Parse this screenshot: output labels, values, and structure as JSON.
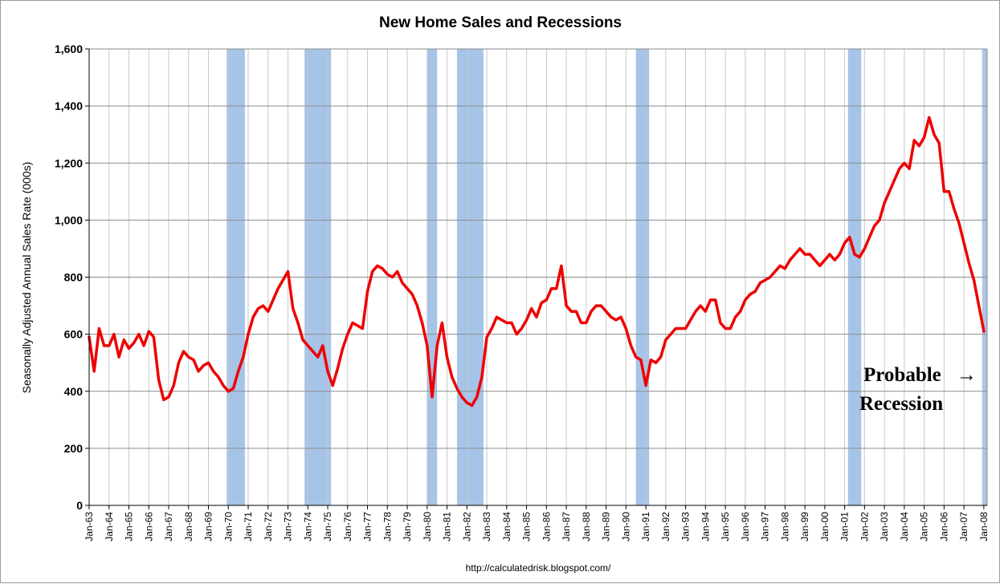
{
  "chart_data": {
    "type": "line",
    "title": "New Home Sales and Recessions",
    "ylabel": "Seasonally Adjusted Annual Sales Rate (000s)",
    "xlabel": "",
    "source": "http://calculatedrisk.blogspot.com/",
    "ylim": [
      0,
      1600
    ],
    "yticks": [
      0,
      200,
      400,
      600,
      800,
      1000,
      1200,
      1400,
      1600
    ],
    "ytick_labels": [
      "0",
      "200",
      "400",
      "600",
      "800",
      "1,000",
      "1,200",
      "1,400",
      "1,600"
    ],
    "xlim": [
      "1963-01",
      "2008-03"
    ],
    "xtick_labels": [
      "Jan-63",
      "Jan-64",
      "Jan-65",
      "Jan-66",
      "Jan-67",
      "Jan-68",
      "Jan-69",
      "Jan-70",
      "Jan-71",
      "Jan-72",
      "Jan-73",
      "Jan-74",
      "Jan-75",
      "Jan-76",
      "Jan-77",
      "Jan-78",
      "Jan-79",
      "Jan-80",
      "Jan-81",
      "Jan-82",
      "Jan-83",
      "Jan-84",
      "Jan-85",
      "Jan-86",
      "Jan-87",
      "Jan-88",
      "Jan-89",
      "Jan-90",
      "Jan-91",
      "Jan-92",
      "Jan-93",
      "Jan-94",
      "Jan-95",
      "Jan-96",
      "Jan-97",
      "Jan-98",
      "Jan-99",
      "Jan-00",
      "Jan-01",
      "Jan-02",
      "Jan-03",
      "Jan-04",
      "Jan-05",
      "Jan-06",
      "Jan-07",
      "Jan-08"
    ],
    "grid": true,
    "recessions": [
      {
        "start": "1969-12",
        "end": "1970-11"
      },
      {
        "start": "1973-11",
        "end": "1975-03"
      },
      {
        "start": "1980-01",
        "end": "1980-07"
      },
      {
        "start": "1981-07",
        "end": "1982-11"
      },
      {
        "start": "1990-07",
        "end": "1991-03"
      },
      {
        "start": "2001-03",
        "end": "2001-11"
      },
      {
        "start": "2007-12",
        "end": "2008-03"
      }
    ],
    "series": [
      {
        "name": "",
        "color": "#ee0000",
        "x": [
          "1963-01",
          "1963-04",
          "1963-07",
          "1963-10",
          "1964-01",
          "1964-04",
          "1964-07",
          "1964-10",
          "1965-01",
          "1965-04",
          "1965-07",
          "1965-10",
          "1966-01",
          "1966-04",
          "1966-07",
          "1966-10",
          "1967-01",
          "1967-04",
          "1967-07",
          "1967-10",
          "1968-01",
          "1968-04",
          "1968-07",
          "1968-10",
          "1969-01",
          "1969-04",
          "1969-07",
          "1969-10",
          "1970-01",
          "1970-04",
          "1970-07",
          "1970-10",
          "1971-01",
          "1971-04",
          "1971-07",
          "1971-10",
          "1972-01",
          "1972-04",
          "1972-07",
          "1972-10",
          "1973-01",
          "1973-04",
          "1973-07",
          "1973-10",
          "1974-01",
          "1974-04",
          "1974-07",
          "1974-10",
          "1975-01",
          "1975-04",
          "1975-07",
          "1975-10",
          "1976-01",
          "1976-04",
          "1976-07",
          "1976-10",
          "1977-01",
          "1977-04",
          "1977-07",
          "1977-10",
          "1978-01",
          "1978-04",
          "1978-07",
          "1978-10",
          "1979-01",
          "1979-04",
          "1979-07",
          "1979-10",
          "1980-01",
          "1980-04",
          "1980-07",
          "1980-10",
          "1981-01",
          "1981-04",
          "1981-07",
          "1981-10",
          "1982-01",
          "1982-04",
          "1982-07",
          "1982-10",
          "1983-01",
          "1983-04",
          "1983-07",
          "1983-10",
          "1984-01",
          "1984-04",
          "1984-07",
          "1984-10",
          "1985-01",
          "1985-04",
          "1985-07",
          "1985-10",
          "1986-01",
          "1986-04",
          "1986-07",
          "1986-10",
          "1987-01",
          "1987-04",
          "1987-07",
          "1987-10",
          "1988-01",
          "1988-04",
          "1988-07",
          "1988-10",
          "1989-01",
          "1989-04",
          "1989-07",
          "1989-10",
          "1990-01",
          "1990-04",
          "1990-07",
          "1990-10",
          "1991-01",
          "1991-04",
          "1991-07",
          "1991-10",
          "1992-01",
          "1992-04",
          "1992-07",
          "1992-10",
          "1993-01",
          "1993-04",
          "1993-07",
          "1993-10",
          "1994-01",
          "1994-04",
          "1994-07",
          "1994-10",
          "1995-01",
          "1995-04",
          "1995-07",
          "1995-10",
          "1996-01",
          "1996-04",
          "1996-07",
          "1996-10",
          "1997-01",
          "1997-04",
          "1997-07",
          "1997-10",
          "1998-01",
          "1998-04",
          "1998-07",
          "1998-10",
          "1999-01",
          "1999-04",
          "1999-07",
          "1999-10",
          "2000-01",
          "2000-04",
          "2000-07",
          "2000-10",
          "2001-01",
          "2001-04",
          "2001-07",
          "2001-10",
          "2002-01",
          "2002-04",
          "2002-07",
          "2002-10",
          "2003-01",
          "2003-04",
          "2003-07",
          "2003-10",
          "2004-01",
          "2004-04",
          "2004-07",
          "2004-10",
          "2005-01",
          "2005-04",
          "2005-07",
          "2005-10",
          "2006-01",
          "2006-04",
          "2006-07",
          "2006-10",
          "2007-01",
          "2007-04",
          "2007-07",
          "2007-10",
          "2008-01"
        ],
        "values": [
          590,
          470,
          620,
          560,
          560,
          600,
          520,
          580,
          550,
          570,
          600,
          560,
          610,
          590,
          440,
          370,
          380,
          420,
          500,
          540,
          520,
          510,
          470,
          490,
          500,
          470,
          450,
          420,
          400,
          410,
          470,
          520,
          600,
          660,
          690,
          700,
          680,
          720,
          760,
          790,
          820,
          690,
          640,
          580,
          560,
          540,
          520,
          560,
          470,
          420,
          480,
          550,
          600,
          640,
          630,
          620,
          750,
          820,
          840,
          830,
          810,
          800,
          820,
          780,
          760,
          740,
          700,
          640,
          560,
          380,
          560,
          640,
          520,
          450,
          410,
          380,
          360,
          350,
          380,
          450,
          590,
          620,
          660,
          650,
          640,
          640,
          600,
          620,
          650,
          690,
          660,
          710,
          720,
          760,
          760,
          840,
          700,
          680,
          680,
          640,
          640,
          680,
          700,
          700,
          680,
          660,
          650,
          660,
          620,
          560,
          520,
          510,
          420,
          510,
          500,
          520,
          580,
          600,
          620,
          620,
          620,
          650,
          680,
          700,
          680,
          720,
          720,
          640,
          620,
          620,
          660,
          680,
          720,
          740,
          750,
          780,
          790,
          800,
          820,
          840,
          830,
          860,
          880,
          900,
          880,
          880,
          860,
          840,
          860,
          880,
          860,
          880,
          920,
          940,
          880,
          870,
          900,
          940,
          980,
          1000,
          1060,
          1100,
          1140,
          1180,
          1200,
          1180,
          1280,
          1260,
          1290,
          1360,
          1300,
          1270,
          1100,
          1100,
          1040,
          990,
          920,
          850,
          790,
          700,
          610
        ]
      }
    ],
    "annotation": {
      "line1": "Probable",
      "arrow": "→",
      "line2": "Recession"
    }
  }
}
